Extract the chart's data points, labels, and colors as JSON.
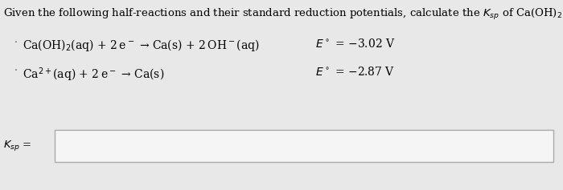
{
  "bg_color": "#e8e8e8",
  "title": "Given the following half-reactions and their standard reduction potentials, calculate the $K_{sp}$ of Ca(OH)$_2$.",
  "reaction1_left": "Ca(OH)$_2$(aq) + 2 e$^-$ → Ca(s) + 2 OH$^-$(aq)",
  "reaction1_right": "$E^\\circ$ = −3.02 V",
  "reaction2_left": "Ca$^{2+}$(aq) + 2 e$^-$ → Ca(s)",
  "reaction2_right": "$E^\\circ$ = −2.87 V",
  "ksp_label": "$K_{sp}$ =",
  "title_fontsize": 9.5,
  "reaction_fontsize": 10,
  "ksp_fontsize": 9.5,
  "box_color": "#f5f5f5",
  "box_edge_color": "#aaaaaa"
}
